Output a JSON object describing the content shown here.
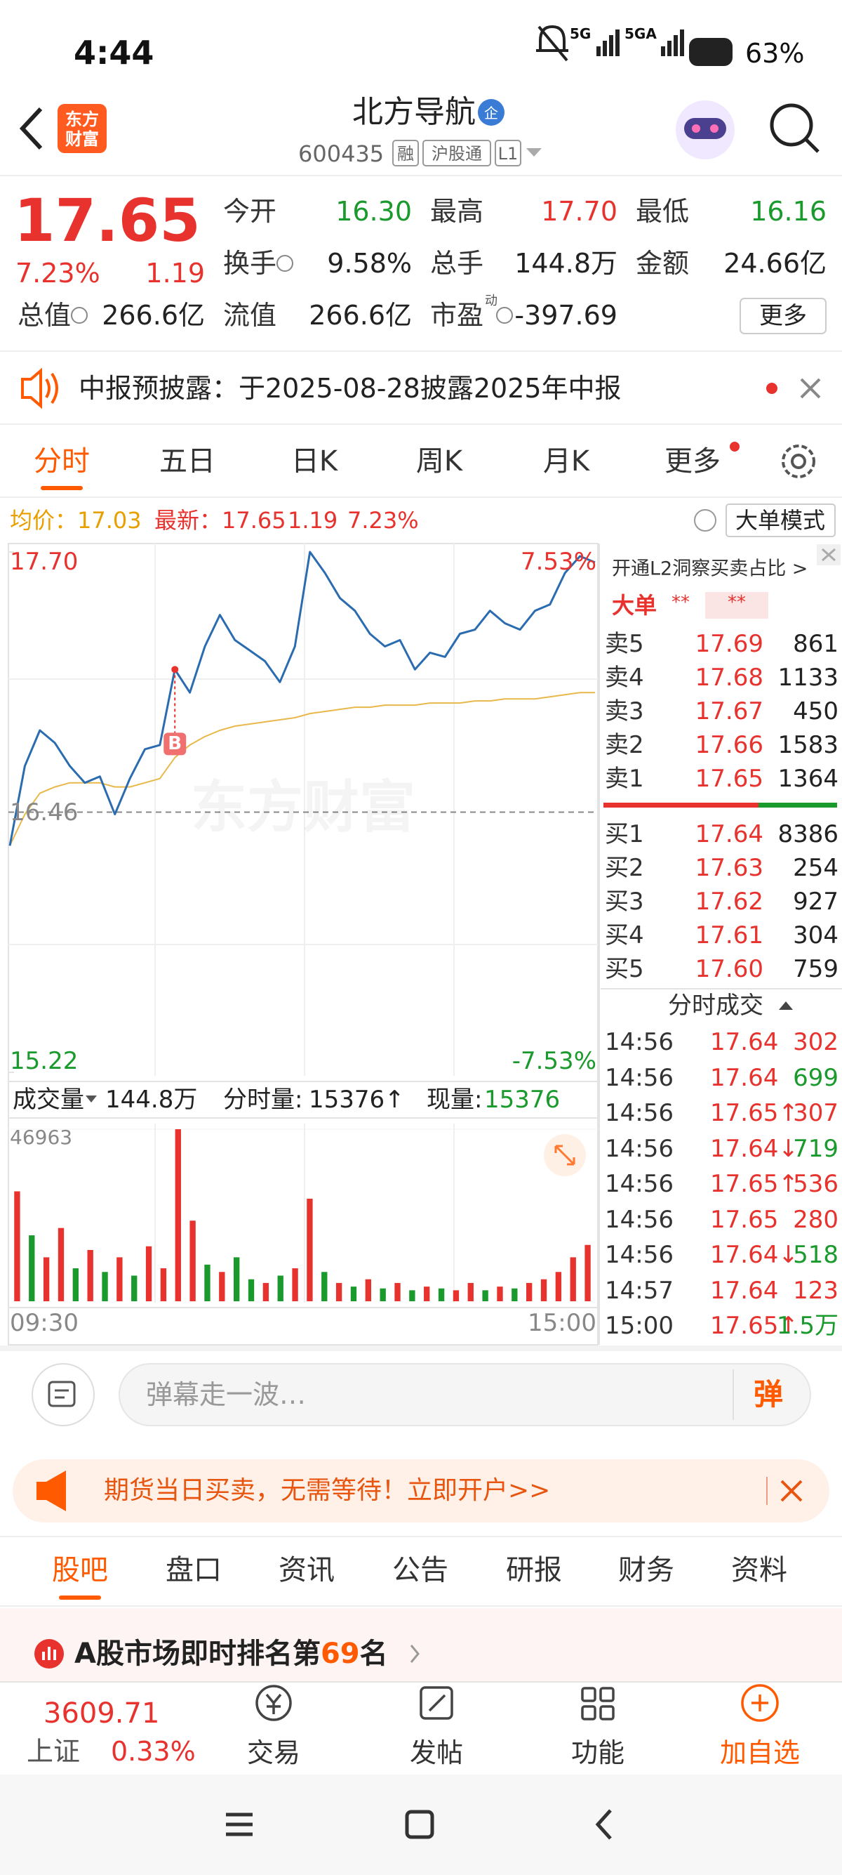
{
  "status_bar": {
    "time": "4:44",
    "network1": "5G",
    "network2": "5GA",
    "battery": "63%"
  },
  "header": {
    "logo": [
      "东方",
      "财富"
    ],
    "title": "北方导航",
    "badge": "企",
    "code": "600435",
    "tags": [
      "融",
      "沪股通",
      "L1"
    ]
  },
  "quote": {
    "price": "17.65",
    "change_pct": "7.23%",
    "change": "1.19",
    "fields": [
      {
        "label": "今开",
        "value": "16.30",
        "color": "#1a9a2c"
      },
      {
        "label": "最高",
        "value": "17.70",
        "color": "#e8322d"
      },
      {
        "label": "最低",
        "value": "16.16",
        "color": "#1a9a2c"
      },
      {
        "label": "换手",
        "value": "9.58%",
        "color": "#222222"
      },
      {
        "label": "总手",
        "value": "144.8万",
        "color": "#222222"
      },
      {
        "label": "金额",
        "value": "24.66亿",
        "color": "#222222"
      },
      {
        "label": "总值",
        "value": "266.6亿",
        "color": "#222222"
      },
      {
        "label": "流值",
        "value": "266.6亿",
        "color": "#222222"
      },
      {
        "label": "市盈",
        "sup": "动",
        "value": "-397.69",
        "color": "#222222"
      }
    ],
    "more": "更多"
  },
  "notice": {
    "text": "中报预披露：于2025-08-28披露2025年中报"
  },
  "tabs": {
    "items": [
      "分时",
      "五日",
      "日K",
      "周K",
      "月K",
      "更多"
    ],
    "active": 0
  },
  "info_line": {
    "avg_label": "均价：",
    "avg": "17.03",
    "last_label": "最新：",
    "last": "17.65",
    "change": "1.19",
    "change_pct": "7.23%",
    "mode": "大单模式"
  },
  "intraday": {
    "type": "line",
    "ylim": [
      15.22,
      17.7
    ],
    "yticks": [
      {
        "value": 17.7,
        "label": "17.70"
      },
      {
        "value": 16.46,
        "label": "16.46"
      },
      {
        "value": 15.22,
        "label": "15.22"
      }
    ],
    "pct_labels": [
      "7.53%",
      "-7.53%"
    ],
    "watermark": "东方财富",
    "marker": {
      "text": "B",
      "point": 11
    },
    "price": [
      16.3,
      16.68,
      16.85,
      16.79,
      16.68,
      16.6,
      16.63,
      16.45,
      16.62,
      16.76,
      16.78,
      17.14,
      17.03,
      17.25,
      17.4,
      17.28,
      17.23,
      17.18,
      17.08,
      17.25,
      17.7,
      17.6,
      17.48,
      17.42,
      17.31,
      17.25,
      17.28,
      17.14,
      17.22,
      17.2,
      17.31,
      17.33,
      17.42,
      17.36,
      17.33,
      17.42,
      17.45,
      17.6,
      17.68,
      17.65
    ],
    "avg": [
      16.3,
      16.45,
      16.55,
      16.58,
      16.6,
      16.6,
      16.6,
      16.58,
      16.58,
      16.6,
      16.62,
      16.72,
      16.78,
      16.82,
      16.85,
      16.87,
      16.88,
      16.89,
      16.9,
      16.91,
      16.93,
      16.94,
      16.95,
      16.96,
      16.96,
      16.97,
      16.97,
      16.97,
      16.98,
      16.98,
      16.98,
      16.99,
      16.99,
      17.0,
      17.0,
      17.0,
      17.01,
      17.02,
      17.03,
      17.03
    ],
    "price_color": "#2b6cb0",
    "avg_color": "#e8b84a"
  },
  "volume_header": {
    "label": "成交量",
    "total": "144.8万",
    "min_vol_label": "分时量:",
    "min_vol": "15376↑",
    "cur_label": "现量:",
    "cur": "15376"
  },
  "volume": {
    "type": "bar",
    "ylim": [
      0,
      46963
    ],
    "yticks": [
      46963
    ],
    "x_labels": [
      "09:30",
      "15:00"
    ],
    "values": [
      30000,
      18000,
      12000,
      20000,
      9000,
      14000,
      8000,
      12000,
      7000,
      15000,
      9000,
      46963,
      22000,
      10000,
      8000,
      12000,
      6000,
      5000,
      7000,
      9000,
      28000,
      8000,
      5000,
      4000,
      6000,
      3500,
      5000,
      3000,
      4000,
      3500,
      3000,
      5000,
      3000,
      4000,
      3500,
      5000,
      6000,
      8000,
      12000,
      15376
    ],
    "up": [
      true,
      false,
      true,
      true,
      false,
      true,
      false,
      true,
      false,
      true,
      true,
      true,
      true,
      false,
      true,
      false,
      false,
      true,
      false,
      true,
      true,
      false,
      true,
      false,
      true,
      false,
      true,
      false,
      true,
      false,
      true,
      true,
      false,
      true,
      false,
      true,
      true,
      true,
      true,
      true
    ],
    "up_color": "#e8322d",
    "down_color": "#1a9a2c"
  },
  "order_book": {
    "l2_text": "开通L2洞察买卖占比 >",
    "big_label": "大单",
    "big_values": [
      "**",
      "**"
    ],
    "asks": [
      {
        "label": "卖5",
        "price": "17.69",
        "volume": "861"
      },
      {
        "label": "卖4",
        "price": "17.68",
        "volume": "1133"
      },
      {
        "label": "卖3",
        "price": "17.67",
        "volume": "450"
      },
      {
        "label": "卖2",
        "price": "17.66",
        "volume": "1583"
      },
      {
        "label": "卖1",
        "price": "17.65",
        "volume": "1364"
      }
    ],
    "bids": [
      {
        "label": "买1",
        "price": "17.64",
        "volume": "8386"
      },
      {
        "label": "买2",
        "price": "17.63",
        "volume": "254"
      },
      {
        "label": "买3",
        "price": "17.62",
        "volume": "927"
      },
      {
        "label": "买4",
        "price": "17.61",
        "volume": "304"
      },
      {
        "label": "买5",
        "price": "17.60",
        "volume": "759"
      }
    ],
    "trades_title": "分时成交",
    "trades": [
      {
        "time": "14:56",
        "price": "17.64",
        "volume": "302",
        "color": "#e8322d"
      },
      {
        "time": "14:56",
        "price": "17.64",
        "volume": "699",
        "color": "#1a9a2c"
      },
      {
        "time": "14:56",
        "price": "17.65↑",
        "volume": "307",
        "color": "#e8322d"
      },
      {
        "time": "14:56",
        "price": "17.64↓",
        "volume": "719",
        "color": "#1a9a2c"
      },
      {
        "time": "14:56",
        "price": "17.65↑",
        "volume": "536",
        "color": "#e8322d"
      },
      {
        "time": "14:56",
        "price": "17.65",
        "volume": "280",
        "color": "#e8322d"
      },
      {
        "time": "14:56",
        "price": "17.64↓",
        "volume": "518",
        "color": "#1a9a2c"
      },
      {
        "time": "14:57",
        "price": "17.64",
        "volume": "123",
        "color": "#e8322d"
      },
      {
        "time": "15:00",
        "price": "17.65↑",
        "volume": "1.5万",
        "color": "#1a9a2c"
      }
    ]
  },
  "danmaku": {
    "placeholder": "弹幕走一波…",
    "button": "弹"
  },
  "ad": {
    "text": "期货当日买卖，无需等待！立即开户>>"
  },
  "sub_tabs": {
    "items": [
      "股吧",
      "盘口",
      "资讯",
      "公告",
      "研报",
      "财务",
      "资料"
    ],
    "active": 0
  },
  "ranking": {
    "prefix": "A股市场即时排名第",
    "rank": "69",
    "suffix": "名"
  },
  "bottom_bar": {
    "index_value": "3609.71",
    "index_name": "上证",
    "index_change": "0.33%",
    "items": [
      "交易",
      "发帖",
      "功能",
      "加自选"
    ]
  }
}
